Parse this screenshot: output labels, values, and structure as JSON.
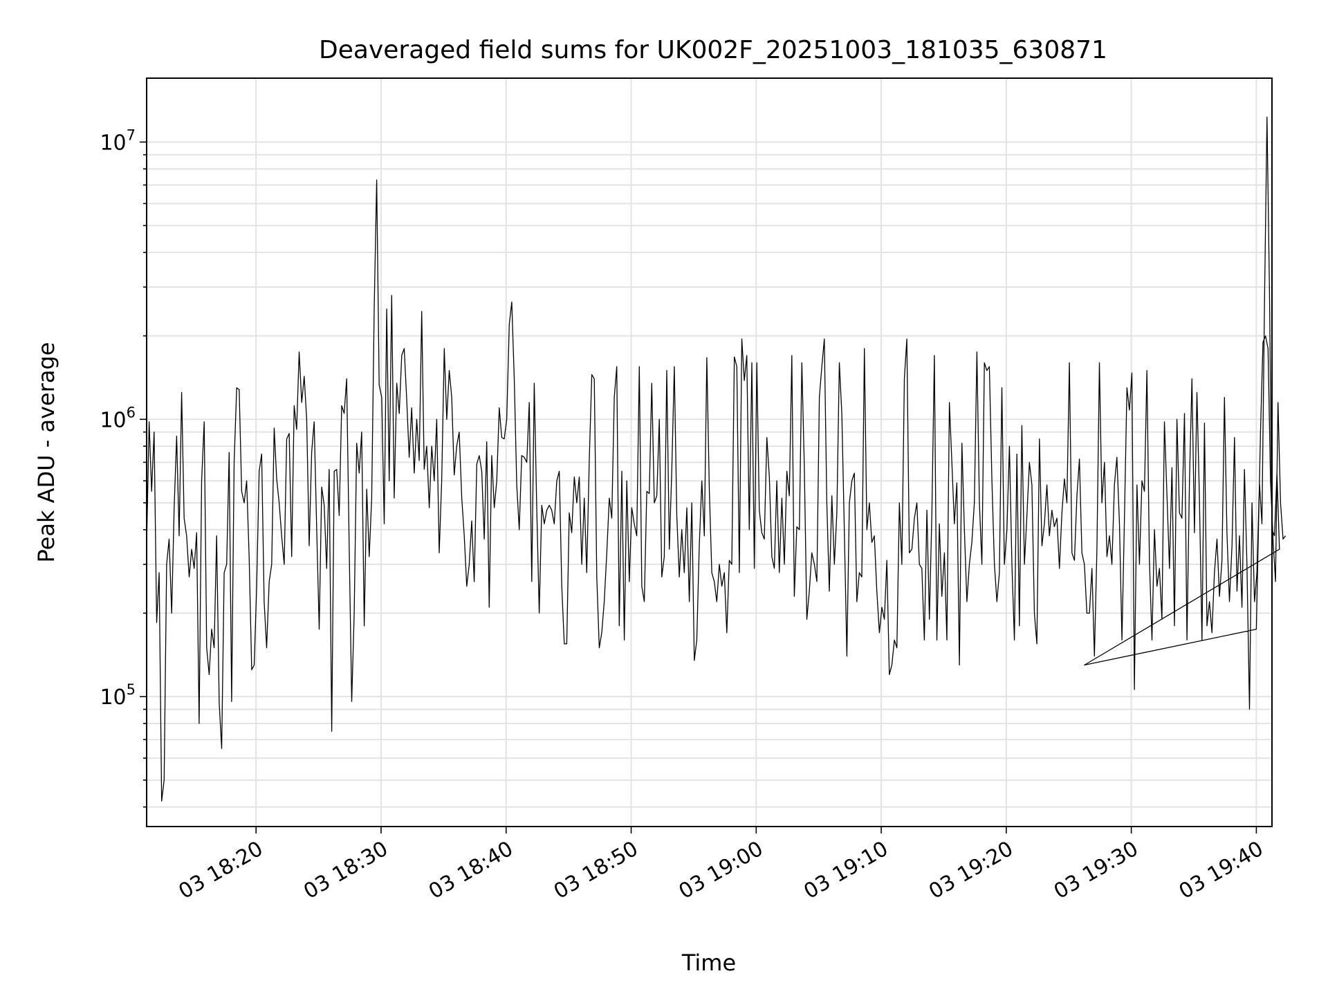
{
  "chart_data": {
    "type": "line",
    "title": "Deaveraged field sums for UK002F_20251003_181035_630871",
    "xlabel": "Time",
    "ylabel": "Peak ADU - average",
    "y_scale": "log",
    "ylim": [
      34000,
      17000000
    ],
    "xlim": [
      "03 18:11:15",
      "03 19:41:15"
    ],
    "grid": true,
    "y_tick_labels": [
      {
        "base": "10",
        "exp": "5",
        "value": 100000
      },
      {
        "base": "10",
        "exp": "6",
        "value": 1000000
      },
      {
        "base": "10",
        "exp": "7",
        "value": 10000000
      }
    ],
    "x_tick_labels": [
      "03 18:20",
      "03 18:30",
      "03 18:40",
      "03 18:50",
      "03 19:00",
      "03 19:10",
      "03 19:20",
      "03 19:30",
      "03 19:40"
    ],
    "series": [
      {
        "x_start": "03 18:11:15",
        "x_step_seconds": 12,
        "values": [
          350000,
          980000,
          550000,
          900000,
          185000,
          280000,
          42000,
          50000,
          300000,
          370000,
          200000,
          480000,
          870000,
          380000,
          1250000,
          440000,
          380000,
          270000,
          340000,
          290000,
          390000,
          80000,
          600000,
          980000,
          150000,
          120000,
          175000,
          150000,
          380000,
          95000,
          65000,
          280000,
          300000,
          760000,
          96000,
          700000,
          1300000,
          1280000,
          550000,
          500000,
          600000,
          320000,
          125000,
          130000,
          250000,
          650000,
          750000,
          220000,
          150000,
          260000,
          300000,
          930000,
          610000,
          500000,
          380000,
          300000,
          850000,
          890000,
          320000,
          1120000,
          920000,
          1750000,
          1150000,
          1430000,
          1000000,
          350000,
          760000,
          980000,
          400000,
          175000,
          570000,
          490000,
          290000,
          660000,
          75000,
          650000,
          660000,
          450000,
          1120000,
          1050000,
          1400000,
          340000,
          96000,
          200000,
          820000,
          640000,
          900000,
          180000,
          560000,
          320000,
          520000,
          2500000,
          7300000,
          1330000,
          1200000,
          420000,
          2500000,
          600000,
          2800000,
          520000,
          1350000,
          1050000,
          1700000,
          1800000,
          1180000,
          730000,
          1100000,
          640000,
          1000000,
          710000,
          2450000,
          660000,
          800000,
          480000,
          800000,
          600000,
          1000000,
          330000,
          600000,
          1800000,
          1000000,
          1500000,
          1200000,
          630000,
          800000,
          900000,
          520000,
          380000,
          250000,
          300000,
          430000,
          260000,
          690000,
          740000,
          650000,
          370000,
          830000,
          210000,
          740000,
          480000,
          600000,
          1100000,
          860000,
          850000,
          1000000,
          2200000,
          2650000,
          1400000,
          580000,
          400000,
          740000,
          730000,
          700000,
          1150000,
          260000,
          1350000,
          480000,
          200000,
          490000,
          420000,
          470000,
          490000,
          470000,
          420000,
          600000,
          650000,
          250000,
          155000,
          155000,
          460000,
          390000,
          620000,
          500000,
          620000,
          300000,
          520000,
          280000,
          720000,
          1450000,
          1400000,
          270000,
          150000,
          170000,
          220000,
          330000,
          520000,
          440000,
          1200000,
          1550000,
          180000,
          650000,
          160000,
          600000,
          260000,
          480000,
          420000,
          380000,
          1550000,
          250000,
          220000,
          550000,
          540000,
          1350000,
          500000,
          530000,
          1000000,
          270000,
          320000,
          1500000,
          340000,
          660000,
          1550000,
          450000,
          270000,
          400000,
          280000,
          480000,
          220000,
          500000,
          135000,
          160000,
          350000,
          600000,
          380000,
          1670000,
          560000,
          280000,
          260000,
          220000,
          300000,
          250000,
          280000,
          170000,
          310000,
          300000,
          1680000,
          1550000,
          280000,
          1950000,
          1380000,
          1700000,
          400000,
          1600000,
          290000,
          1600000,
          470000,
          390000,
          370000,
          860000,
          620000,
          320000,
          290000,
          600000,
          280000,
          520000,
          300000,
          650000,
          530000,
          1700000,
          230000,
          410000,
          400000,
          1600000,
          670000,
          190000,
          240000,
          330000,
          300000,
          260000,
          1200000,
          1550000,
          1950000,
          500000,
          240000,
          530000,
          300000,
          460000,
          1600000,
          1050000,
          400000,
          140000,
          500000,
          600000,
          640000,
          220000,
          280000,
          270000,
          1800000,
          400000,
          500000,
          360000,
          380000,
          240000,
          170000,
          210000,
          190000,
          310000,
          120000,
          130000,
          160000,
          150000,
          500000,
          300000,
          1400000,
          1950000,
          330000,
          340000,
          440000,
          500000,
          300000,
          290000,
          160000,
          470000,
          190000,
          460000,
          1700000,
          160000,
          420000,
          230000,
          330000,
          160000,
          1150000,
          700000,
          420000,
          590000,
          130000,
          820000,
          400000,
          220000,
          300000,
          360000,
          500000,
          1750000,
          500000,
          300000,
          1600000,
          1500000,
          1550000,
          600000,
          300000,
          220000,
          280000,
          1300000,
          300000,
          400000,
          800000,
          300000,
          160000,
          750000,
          180000,
          950000,
          300000,
          450000,
          700000,
          580000,
          200000,
          155000,
          850000,
          350000,
          420000,
          580000,
          380000,
          470000,
          410000,
          440000,
          290000,
          460000,
          610000,
          500000,
          1600000,
          330000,
          310000,
          530000,
          720000,
          330000,
          300000,
          200000,
          200000,
          290000,
          140000,
          340000,
          1600000,
          500000,
          700000,
          320000,
          380000,
          300000,
          580000,
          730000,
          420000,
          160000,
          440000,
          1300000,
          1080000,
          1470000,
          106000,
          580000,
          300000,
          600000,
          550000,
          1500000,
          310000,
          160000,
          400000,
          250000,
          290000,
          190000,
          980000,
          540000,
          290000,
          670000,
          180000,
          1000000,
          460000,
          440000,
          1050000,
          160000,
          600000,
          1400000,
          390000,
          1250000,
          520000,
          160000,
          970000,
          180000,
          220000,
          170000,
          280000,
          370000,
          230000,
          310000,
          1200000,
          390000,
          220000,
          350000,
          860000,
          240000,
          380000,
          210000,
          660000,
          300000,
          90000,
          500000,
          220000,
          280000,
          590000,
          420000,
          2650000,
          12300000,
          2870000,
          400000,
          380000,
          640000,
          340000
        ],
        "gap": {
          "from": "03 19:26:15",
          "to": "03 19:40:00",
          "values": [
            130000,
            175000
          ]
        },
        "tail_start": "03 19:40:20",
        "tail_step_seconds": 12,
        "tail_values": [
          900000,
          1900000,
          2000000,
          1800000,
          600000,
          370000,
          260000,
          1150000,
          500000,
          370000,
          380000
        ]
      }
    ]
  }
}
